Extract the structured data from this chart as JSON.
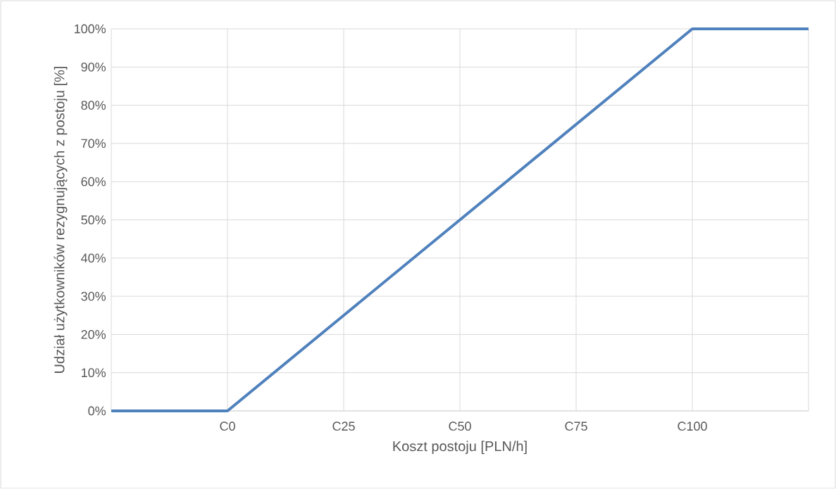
{
  "chart_data": {
    "type": "line",
    "xlabel": "Koszt postoju [PLN/h]",
    "ylabel": "Udział użytkowników rezygnujących z postoju [%]",
    "categories": [
      null,
      "C0",
      "C25",
      "C50",
      "C75",
      "C100",
      null
    ],
    "series": [
      {
        "color": "#4f81bd",
        "values": [
          0,
          0,
          25,
          50,
          75,
          100,
          100
        ]
      }
    ],
    "ylim": [
      0,
      100
    ],
    "yticks": [
      {
        "value": 0,
        "label": "0%"
      },
      {
        "value": 10,
        "label": "10%"
      },
      {
        "value": 20,
        "label": "20%"
      },
      {
        "value": 30,
        "label": "30%"
      },
      {
        "value": 40,
        "label": "40%"
      },
      {
        "value": 50,
        "label": "50%"
      },
      {
        "value": 60,
        "label": "60%"
      },
      {
        "value": 70,
        "label": "70%"
      },
      {
        "value": 80,
        "label": "80%"
      },
      {
        "value": 90,
        "label": "90%"
      },
      {
        "value": 100,
        "label": "100%"
      }
    ],
    "grid": true,
    "marker": "none",
    "line_style": "solid"
  }
}
